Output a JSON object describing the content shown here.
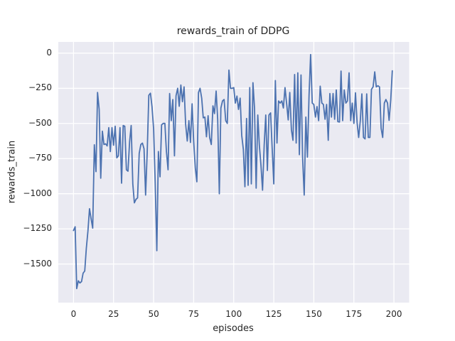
{
  "window": {
    "title": "rewards_train of DDPG figure"
  },
  "chart_data": {
    "type": "line",
    "title": "rewards_train of DDPG",
    "xlabel": "episodes",
    "ylabel": "rewards_train",
    "legend_position": "none",
    "grid": true,
    "x_start": 0,
    "x_step": 1,
    "xlim": [
      -9.5,
      209.5
    ],
    "ylim": [
      -1775,
      80
    ],
    "xtick_values": [
      0,
      25,
      50,
      75,
      100,
      125,
      150,
      175,
      200
    ],
    "xtick_labels": [
      "0",
      "25",
      "50",
      "75",
      "100",
      "125",
      "150",
      "175",
      "200"
    ],
    "ytick_values": [
      0,
      -250,
      -500,
      -750,
      -1000,
      -1250,
      -1500
    ],
    "ytick_labels": [
      "0",
      "−250",
      "−500",
      "−750",
      "−1000",
      "−1250",
      "−1500"
    ],
    "line_color": "#4c72b0",
    "plot_background": "#eaeaf2",
    "grid_color": "#ffffff",
    "text_color": "#262626",
    "figure_background": "#ffffff",
    "values": [
      -1262,
      -1235,
      -1675,
      -1620,
      -1635,
      -1625,
      -1565,
      -1550,
      -1390,
      -1265,
      -1107,
      -1180,
      -1245,
      -652,
      -843,
      -280,
      -400,
      -890,
      -555,
      -650,
      -645,
      -660,
      -530,
      -700,
      -530,
      -655,
      -520,
      -745,
      -730,
      -530,
      -925,
      -515,
      -520,
      -830,
      -840,
      -630,
      -515,
      -930,
      -1065,
      -1040,
      -1030,
      -713,
      -650,
      -640,
      -680,
      -1010,
      -700,
      -300,
      -285,
      -380,
      -540,
      -925,
      -1405,
      -700,
      -880,
      -510,
      -500,
      -500,
      -700,
      -830,
      -287,
      -480,
      -330,
      -730,
      -303,
      -250,
      -378,
      -227,
      -345,
      -240,
      -505,
      -625,
      -480,
      -635,
      -360,
      -625,
      -815,
      -915,
      -280,
      -250,
      -320,
      -460,
      -455,
      -595,
      -445,
      -600,
      -650,
      -375,
      -430,
      -270,
      -470,
      -1000,
      -390,
      -340,
      -330,
      -480,
      -500,
      -120,
      -250,
      -250,
      -245,
      -355,
      -305,
      -400,
      -320,
      -585,
      -685,
      -950,
      -465,
      -940,
      -245,
      -930,
      -210,
      -390,
      -960,
      -440,
      -655,
      -800,
      -975,
      -655,
      -440,
      -835,
      -440,
      -425,
      -672,
      -930,
      -195,
      -640,
      -340,
      -355,
      -340,
      -390,
      -245,
      -355,
      -475,
      -280,
      -545,
      -620,
      -152,
      -640,
      -140,
      -722,
      -155,
      -740,
      -1010,
      -455,
      -740,
      -300,
      -10,
      -355,
      -365,
      -455,
      -380,
      -480,
      -235,
      -355,
      -365,
      -470,
      -365,
      -620,
      -287,
      -455,
      -287,
      -470,
      -262,
      -487,
      -490,
      -127,
      -480,
      -262,
      -355,
      -340,
      -140,
      -480,
      -355,
      -500,
      -282,
      -494,
      -600,
      -480,
      -290,
      -600,
      -610,
      -290,
      -600,
      -600,
      -257,
      -240,
      -133,
      -240,
      -232,
      -240,
      -535,
      -600,
      -355,
      -330,
      -355,
      -478,
      -335,
      -125
    ]
  }
}
